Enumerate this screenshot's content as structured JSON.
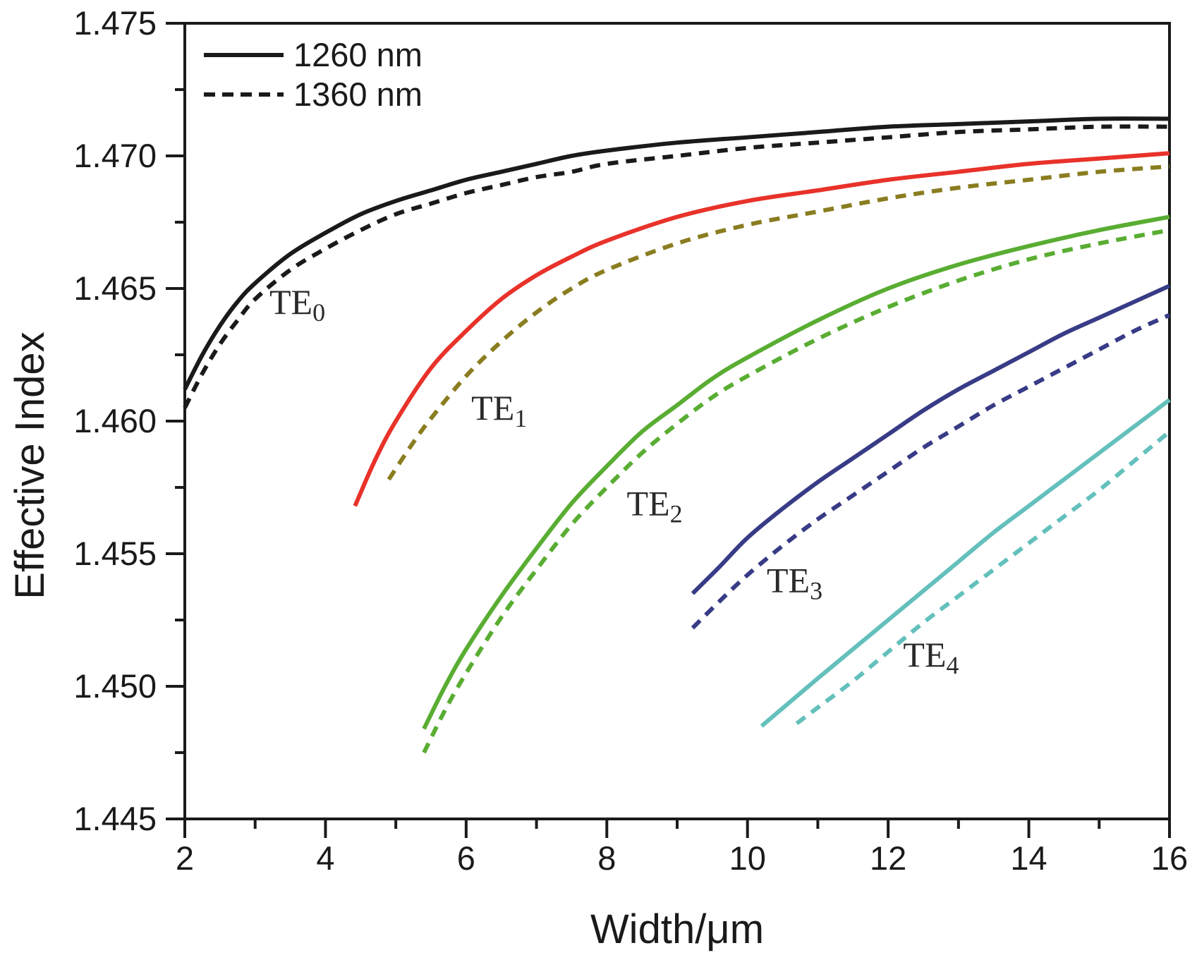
{
  "chart_data": {
    "type": "line",
    "title": "",
    "xlabel": "Width/μm",
    "ylabel": "Effective Index",
    "xlim": [
      2,
      16
    ],
    "ylim": [
      1.445,
      1.475
    ],
    "grid": false,
    "axis_color": "#1a1a1a",
    "x_major_ticks": [
      {
        "value": 2,
        "label": "2"
      },
      {
        "value": 4,
        "label": "4"
      },
      {
        "value": 6,
        "label": "6"
      },
      {
        "value": 8,
        "label": "8"
      },
      {
        "value": 10,
        "label": "10"
      },
      {
        "value": 12,
        "label": "12"
      },
      {
        "value": 14,
        "label": "14"
      },
      {
        "value": 16,
        "label": "16"
      }
    ],
    "x_minor_ticks": [
      3,
      5,
      7,
      9,
      11,
      13,
      15
    ],
    "y_major_ticks": [
      {
        "value": 1.445,
        "label": "1.445"
      },
      {
        "value": 1.45,
        "label": "1.450"
      },
      {
        "value": 1.455,
        "label": "1.455"
      },
      {
        "value": 1.46,
        "label": "1.460"
      },
      {
        "value": 1.465,
        "label": "1.465"
      },
      {
        "value": 1.47,
        "label": "1.470"
      },
      {
        "value": 1.475,
        "label": "1.475"
      }
    ],
    "y_minor_ticks": [
      1.4475,
      1.4525,
      1.4575,
      1.4625,
      1.4675,
      1.4725
    ],
    "legend": {
      "position": "top-left",
      "entries": [
        {
          "label": "1260 nm",
          "style": "solid"
        },
        {
          "label": "1360 nm",
          "style": "dashed"
        }
      ]
    },
    "modes": [
      {
        "name": "TE0",
        "label_text": "TE",
        "label_sub": "0",
        "color": "#1a1a1a",
        "label_at": {
          "w": 3.6,
          "n": 1.4645
        },
        "series": [
          {
            "wavelength": "1260 nm",
            "style": "solid",
            "points": [
              [
                2,
                1.4612
              ],
              [
                2.25,
                1.4625
              ],
              [
                2.5,
                1.4636
              ],
              [
                2.75,
                1.4645
              ],
              [
                3,
                1.4652
              ],
              [
                3.5,
                1.4663
              ],
              [
                4,
                1.4671
              ],
              [
                4.5,
                1.4678
              ],
              [
                5,
                1.4683
              ],
              [
                5.5,
                1.4687
              ],
              [
                6,
                1.4691
              ],
              [
                6.5,
                1.4694
              ],
              [
                7,
                1.4697
              ],
              [
                7.5,
                1.47
              ],
              [
                8,
                1.4702
              ],
              [
                9,
                1.4705
              ],
              [
                10,
                1.4707
              ],
              [
                11,
                1.4709
              ],
              [
                12,
                1.4711
              ],
              [
                13,
                1.4712
              ],
              [
                14,
                1.4713
              ],
              [
                15,
                1.4714
              ],
              [
                16,
                1.4714
              ]
            ]
          },
          {
            "wavelength": "1360 nm",
            "style": "dashed",
            "points": [
              [
                2,
                1.4605
              ],
              [
                2.25,
                1.4618
              ],
              [
                2.5,
                1.4629
              ],
              [
                2.75,
                1.4638
              ],
              [
                3,
                1.4646
              ],
              [
                3.5,
                1.4657
              ],
              [
                4,
                1.4665
              ],
              [
                4.5,
                1.4672
              ],
              [
                5,
                1.4678
              ],
              [
                5.5,
                1.4682
              ],
              [
                6,
                1.4686
              ],
              [
                6.5,
                1.4689
              ],
              [
                7,
                1.4692
              ],
              [
                7.5,
                1.4694
              ],
              [
                8,
                1.4697
              ],
              [
                9,
                1.47
              ],
              [
                10,
                1.4703
              ],
              [
                11,
                1.4705
              ],
              [
                12,
                1.4707
              ],
              [
                13,
                1.4709
              ],
              [
                14,
                1.471
              ],
              [
                15,
                1.4711
              ],
              [
                16,
                1.4711
              ]
            ]
          }
        ]
      },
      {
        "name": "TE1",
        "label_text": "TE",
        "label_sub": "1",
        "color": "#e8322a",
        "dashed_color": "#8a7d20",
        "label_at": {
          "w": 6.47,
          "n": 1.4605
        },
        "series": [
          {
            "wavelength": "1260 nm",
            "style": "solid",
            "points": [
              [
                4.42,
                1.4568
              ],
              [
                4.7,
                1.4585
              ],
              [
                5,
                1.46
              ],
              [
                5.5,
                1.462
              ],
              [
                6,
                1.4634
              ],
              [
                6.5,
                1.4646
              ],
              [
                7,
                1.4655
              ],
              [
                7.5,
                1.4662
              ],
              [
                8,
                1.4668
              ],
              [
                9,
                1.4677
              ],
              [
                10,
                1.4683
              ],
              [
                11,
                1.4687
              ],
              [
                12,
                1.4691
              ],
              [
                13,
                1.4694
              ],
              [
                14,
                1.4697
              ],
              [
                15,
                1.4699
              ],
              [
                16,
                1.4701
              ]
            ]
          },
          {
            "wavelength": "1360 nm",
            "style": "dashed",
            "points": [
              [
                4.9,
                1.4578
              ],
              [
                5.25,
                1.4592
              ],
              [
                5.5,
                1.4601
              ],
              [
                6,
                1.4617
              ],
              [
                6.5,
                1.463
              ],
              [
                7,
                1.4641
              ],
              [
                7.5,
                1.465
              ],
              [
                8,
                1.4657
              ],
              [
                9,
                1.4667
              ],
              [
                10,
                1.4674
              ],
              [
                11,
                1.4679
              ],
              [
                12,
                1.4684
              ],
              [
                13,
                1.4688
              ],
              [
                14,
                1.4691
              ],
              [
                15,
                1.4694
              ],
              [
                16,
                1.4696
              ]
            ]
          }
        ]
      },
      {
        "name": "TE2",
        "label_text": "TE",
        "label_sub": "2",
        "color": "#59ad32",
        "label_at": {
          "w": 8.68,
          "n": 1.4569
        },
        "series": [
          {
            "wavelength": "1260 nm",
            "style": "solid",
            "points": [
              [
                5.4,
                1.4484
              ],
              [
                5.7,
                1.45
              ],
              [
                6,
                1.4514
              ],
              [
                6.5,
                1.4534
              ],
              [
                7,
                1.4552
              ],
              [
                7.5,
                1.4569
              ],
              [
                8,
                1.4583
              ],
              [
                8.5,
                1.4596
              ],
              [
                9,
                1.4606
              ],
              [
                9.5,
                1.4616
              ],
              [
                10,
                1.4624
              ],
              [
                11,
                1.4638
              ],
              [
                12,
                1.465
              ],
              [
                13,
                1.4659
              ],
              [
                14,
                1.4666
              ],
              [
                15,
                1.4672
              ],
              [
                16,
                1.4677
              ]
            ]
          },
          {
            "wavelength": "1360 nm",
            "style": "dashed",
            "points": [
              [
                5.4,
                1.4475
              ],
              [
                5.7,
                1.4491
              ],
              [
                6,
                1.4505
              ],
              [
                6.5,
                1.4526
              ],
              [
                7,
                1.4544
              ],
              [
                7.5,
                1.4561
              ],
              [
                8,
                1.4575
              ],
              [
                8.5,
                1.4588
              ],
              [
                9,
                1.4599
              ],
              [
                9.5,
                1.4609
              ],
              [
                10,
                1.4617
              ],
              [
                11,
                1.4631
              ],
              [
                12,
                1.4643
              ],
              [
                13,
                1.4653
              ],
              [
                14,
                1.4661
              ],
              [
                15,
                1.4667
              ],
              [
                16,
                1.4672
              ]
            ]
          }
        ]
      },
      {
        "name": "TE3",
        "label_text": "TE",
        "label_sub": "3",
        "color": "#383b85",
        "label_at": {
          "w": 10.67,
          "n": 1.454
        },
        "series": [
          {
            "wavelength": "1260 nm",
            "style": "solid",
            "points": [
              [
                9.22,
                1.4535
              ],
              [
                9.6,
                1.4545
              ],
              [
                10,
                1.4556
              ],
              [
                10.5,
                1.4567
              ],
              [
                11,
                1.4577
              ],
              [
                11.5,
                1.4586
              ],
              [
                12,
                1.4595
              ],
              [
                12.5,
                1.4604
              ],
              [
                13,
                1.4612
              ],
              [
                13.5,
                1.4619
              ],
              [
                14,
                1.4626
              ],
              [
                14.5,
                1.4633
              ],
              [
                15,
                1.4639
              ],
              [
                15.5,
                1.4645
              ],
              [
                16,
                1.4651
              ]
            ]
          },
          {
            "wavelength": "1360 nm",
            "style": "dashed",
            "points": [
              [
                9.22,
                1.4522
              ],
              [
                9.6,
                1.4532
              ],
              [
                10,
                1.4542
              ],
              [
                10.5,
                1.4553
              ],
              [
                11,
                1.4563
              ],
              [
                11.5,
                1.4572
              ],
              [
                12,
                1.4581
              ],
              [
                12.5,
                1.459
              ],
              [
                13,
                1.4598
              ],
              [
                13.5,
                1.4606
              ],
              [
                14,
                1.4613
              ],
              [
                14.5,
                1.462
              ],
              [
                15,
                1.4627
              ],
              [
                15.5,
                1.4634
              ],
              [
                16,
                1.464
              ]
            ]
          }
        ]
      },
      {
        "name": "TE4",
        "label_text": "TE",
        "label_sub": "4",
        "color": "#64c0bc",
        "label_at": {
          "w": 12.61,
          "n": 1.4512
        },
        "series": [
          {
            "wavelength": "1260 nm",
            "style": "solid",
            "points": [
              [
                10.2,
                1.4485
              ],
              [
                10.6,
                1.4494
              ],
              [
                11,
                1.4503
              ],
              [
                11.5,
                1.4514
              ],
              [
                12,
                1.4525
              ],
              [
                12.5,
                1.4536
              ],
              [
                13,
                1.4547
              ],
              [
                13.5,
                1.4558
              ],
              [
                14,
                1.4568
              ],
              [
                14.5,
                1.4578
              ],
              [
                15,
                1.4588
              ],
              [
                15.5,
                1.4598
              ],
              [
                16,
                1.4608
              ]
            ]
          },
          {
            "wavelength": "1360 nm",
            "style": "dashed",
            "points": [
              [
                10.7,
                1.4486
              ],
              [
                11,
                1.4492
              ],
              [
                11.5,
                1.4502
              ],
              [
                12,
                1.4513
              ],
              [
                12.5,
                1.4524
              ],
              [
                13,
                1.4534
              ],
              [
                13.5,
                1.4544
              ],
              [
                14,
                1.4554
              ],
              [
                14.5,
                1.4564
              ],
              [
                15,
                1.4574
              ],
              [
                15.5,
                1.4585
              ],
              [
                16,
                1.4596
              ]
            ]
          }
        ]
      }
    ]
  }
}
